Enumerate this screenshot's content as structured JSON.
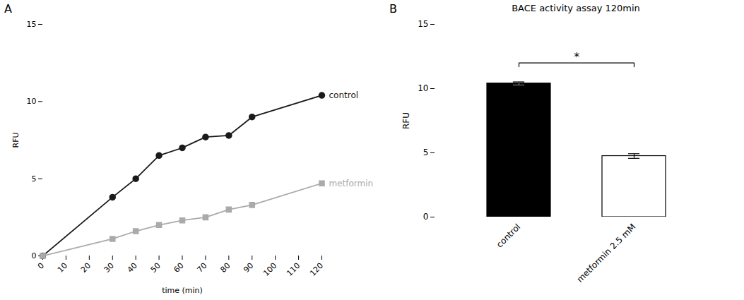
{
  "chart_data": [
    {
      "type": "line",
      "annotations": [
        "A"
      ],
      "xlabel": "time (min)",
      "ylabel": "RFU",
      "x": [
        0,
        30,
        40,
        50,
        60,
        70,
        80,
        90,
        120
      ],
      "series": [
        {
          "name": "control",
          "color": "#1a1a1a",
          "marker": "circle",
          "values": [
            0,
            3.8,
            5.0,
            6.5,
            7.0,
            7.7,
            7.8,
            9.0,
            10.4
          ]
        },
        {
          "name": "metformin",
          "color": "#aaaaaa",
          "marker": "square",
          "values": [
            0,
            1.1,
            1.6,
            2.0,
            2.3,
            2.5,
            3.0,
            3.3,
            4.7
          ]
        }
      ],
      "xlim": [
        0,
        120
      ],
      "ylim": [
        0,
        15
      ],
      "xticks": [
        0,
        10,
        20,
        30,
        40,
        50,
        60,
        70,
        80,
        90,
        100,
        110,
        120
      ],
      "yticks": [
        0,
        5,
        10,
        15
      ]
    },
    {
      "type": "bar",
      "annotations": [
        "B"
      ],
      "title": "BACE activity assay 120min",
      "ylabel": "RFU",
      "categories": [
        "control",
        "metformin 2.5 mM"
      ],
      "values": [
        10.4,
        4.75
      ],
      "errors": [
        0.12,
        0.18
      ],
      "colors": [
        "#000000",
        "#ffffff"
      ],
      "ylim": [
        0,
        15
      ],
      "yticks": [
        0,
        5,
        10,
        15
      ],
      "significance": {
        "between": [
          "control",
          "metformin 2.5 mM"
        ],
        "y": 12.0,
        "text": "*"
      }
    }
  ]
}
